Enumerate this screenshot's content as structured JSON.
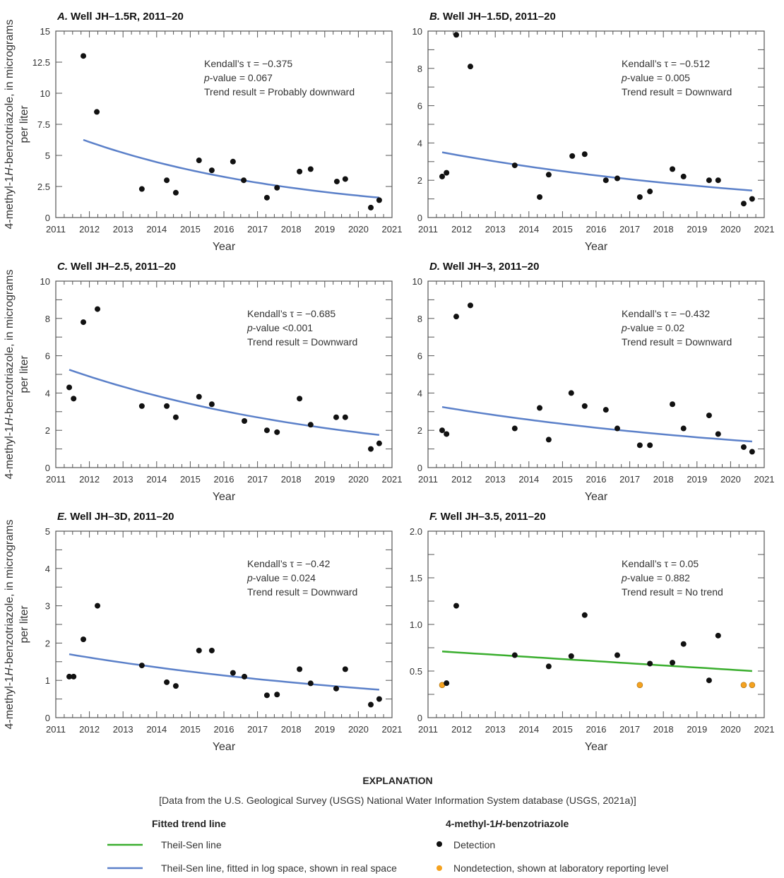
{
  "y_axis_label": {
    "line1_a": "4-methyl-1",
    "line1_italic": "H",
    "line1_b": "-benzotriazole, in micrograms",
    "line2": "per liter"
  },
  "x_axis_label": "Year",
  "stat_labels": {
    "kendall": "Kendall’s τ = ",
    "p_italic": "p",
    "p_rest": "-value ",
    "trend": "Trend result = "
  },
  "colors": {
    "detection": "#111111",
    "nondetection": "#f5a21f",
    "theil_sen": "#3aae2e",
    "theil_sen_log": "#5b80c9",
    "frame": "#555555"
  },
  "chart_data": [
    {
      "type": "scatter",
      "letter": "A.",
      "title": "Well JH–1.5R, 2011–20",
      "xlim": [
        2011,
        2021
      ],
      "ylim": [
        0,
        15
      ],
      "yticks": [
        "0",
        "2.5",
        "5",
        "7.5",
        "10",
        "12.5",
        "15"
      ],
      "yminor": 2.5,
      "stats": {
        "tau": "−0.375",
        "p": "= 0.067",
        "trend": "Probably downward"
      },
      "detections": [
        [
          2011.82,
          13
        ],
        [
          2012.22,
          8.5
        ],
        [
          2013.56,
          2.3
        ],
        [
          2014.3,
          3
        ],
        [
          2014.57,
          2
        ],
        [
          2015.26,
          4.6
        ],
        [
          2015.64,
          3.8
        ],
        [
          2016.27,
          4.5
        ],
        [
          2016.59,
          3
        ],
        [
          2017.28,
          1.6
        ],
        [
          2017.58,
          2.4
        ],
        [
          2018.25,
          3.7
        ],
        [
          2018.58,
          3.9
        ],
        [
          2019.36,
          2.9
        ],
        [
          2019.61,
          3.1
        ],
        [
          2020.37,
          0.8
        ],
        [
          2020.62,
          1.4
        ]
      ],
      "nondetections": [],
      "trend_line": {
        "method": "Theil-Sen line, fitted in log space, shown in real space",
        "start": [
          2011.82,
          6.25
        ],
        "end": [
          2020.62,
          1.6
        ]
      }
    },
    {
      "type": "scatter",
      "letter": "B.",
      "title": "Well JH–1.5D, 2011–20",
      "xlim": [
        2011,
        2021
      ],
      "ylim": [
        0,
        10
      ],
      "yticks": [
        "0",
        "2",
        "4",
        "6",
        "8",
        "10"
      ],
      "yminor": 1,
      "stats": {
        "tau": "−0.512",
        "p": "= 0.005",
        "trend": "Downward"
      },
      "detections": [
        [
          2011.42,
          2.2
        ],
        [
          2011.55,
          2.4
        ],
        [
          2011.84,
          9.8
        ],
        [
          2012.26,
          8.1
        ],
        [
          2013.58,
          2.8
        ],
        [
          2014.32,
          1.1
        ],
        [
          2014.59,
          2.3
        ],
        [
          2015.29,
          3.3
        ],
        [
          2015.66,
          3.4
        ],
        [
          2016.29,
          2.0
        ],
        [
          2016.63,
          2.1
        ],
        [
          2017.3,
          1.1
        ],
        [
          2017.6,
          1.4
        ],
        [
          2018.27,
          2.6
        ],
        [
          2018.6,
          2.2
        ],
        [
          2019.36,
          2.0
        ],
        [
          2019.63,
          2.0
        ],
        [
          2020.39,
          0.75
        ],
        [
          2020.64,
          1.0
        ]
      ],
      "nondetections": [],
      "trend_line": {
        "method": "Theil-Sen line, fitted in log space, shown in real space",
        "start": [
          2011.42,
          3.5
        ],
        "end": [
          2020.64,
          1.45
        ]
      }
    },
    {
      "type": "scatter",
      "letter": "C.",
      "title": "Well JH–2.5, 2011–20",
      "xlim": [
        2011,
        2021
      ],
      "ylim": [
        0,
        10
      ],
      "yticks": [
        "0",
        "2",
        "4",
        "6",
        "8",
        "10"
      ],
      "yminor": 1,
      "stats": {
        "tau": "−0.685",
        "p": "<0.001",
        "trend": "Downward"
      },
      "detections": [
        [
          2011.4,
          4.3
        ],
        [
          2011.53,
          3.7
        ],
        [
          2011.82,
          7.8
        ],
        [
          2012.24,
          8.5
        ],
        [
          2013.56,
          3.3
        ],
        [
          2014.3,
          3.3
        ],
        [
          2014.57,
          2.7
        ],
        [
          2015.26,
          3.8
        ],
        [
          2015.64,
          3.4
        ],
        [
          2016.61,
          2.5
        ],
        [
          2017.28,
          2.0
        ],
        [
          2017.58,
          1.9
        ],
        [
          2018.25,
          3.7
        ],
        [
          2018.58,
          2.3
        ],
        [
          2019.34,
          2.7
        ],
        [
          2019.61,
          2.7
        ],
        [
          2020.37,
          1.0
        ],
        [
          2020.62,
          1.3
        ]
      ],
      "nondetections": [],
      "trend_line": {
        "method": "Theil-Sen line, fitted in log space, shown in real space",
        "start": [
          2011.4,
          5.25
        ],
        "end": [
          2020.62,
          1.75
        ]
      }
    },
    {
      "type": "scatter",
      "letter": "D.",
      "title": "Well JH–3, 2011–20",
      "xlim": [
        2011,
        2021
      ],
      "ylim": [
        0,
        10
      ],
      "yticks": [
        "0",
        "2",
        "4",
        "6",
        "8",
        "10"
      ],
      "yminor": 1,
      "stats": {
        "tau": "−0.432",
        "p": "= 0.02",
        "trend": "Downward"
      },
      "detections": [
        [
          2011.42,
          2.0
        ],
        [
          2011.55,
          1.8
        ],
        [
          2011.84,
          8.1
        ],
        [
          2012.26,
          8.7
        ],
        [
          2013.58,
          2.1
        ],
        [
          2014.32,
          3.2
        ],
        [
          2014.59,
          1.5
        ],
        [
          2015.26,
          4.0
        ],
        [
          2015.66,
          3.3
        ],
        [
          2016.29,
          3.1
        ],
        [
          2016.63,
          2.1
        ],
        [
          2017.3,
          1.2
        ],
        [
          2017.6,
          1.2
        ],
        [
          2018.27,
          3.4
        ],
        [
          2018.6,
          2.1
        ],
        [
          2019.36,
          2.8
        ],
        [
          2019.63,
          1.8
        ],
        [
          2020.39,
          1.1
        ],
        [
          2020.64,
          0.85
        ]
      ],
      "nondetections": [],
      "trend_line": {
        "method": "Theil-Sen line, fitted in log space, shown in real space",
        "start": [
          2011.42,
          3.25
        ],
        "end": [
          2020.64,
          1.4
        ]
      }
    },
    {
      "type": "scatter",
      "letter": "E.",
      "title": "Well JH–3D, 2011–20",
      "xlim": [
        2011,
        2021
      ],
      "ylim": [
        0,
        5
      ],
      "yticks": [
        "0",
        "1",
        "2",
        "3",
        "4",
        "5"
      ],
      "yminor": 0.5,
      "stats": {
        "tau": "−0.42",
        "p": "= 0.024",
        "trend": "Downward"
      },
      "detections": [
        [
          2011.4,
          1.1
        ],
        [
          2011.53,
          1.1
        ],
        [
          2011.82,
          2.1
        ],
        [
          2012.24,
          3.0
        ],
        [
          2013.56,
          1.4
        ],
        [
          2014.3,
          0.95
        ],
        [
          2014.57,
          0.85
        ],
        [
          2015.26,
          1.8
        ],
        [
          2015.64,
          1.8
        ],
        [
          2016.27,
          1.2
        ],
        [
          2016.61,
          1.1
        ],
        [
          2017.28,
          0.6
        ],
        [
          2017.58,
          0.62
        ],
        [
          2018.25,
          1.3
        ],
        [
          2018.58,
          0.92
        ],
        [
          2019.34,
          0.78
        ],
        [
          2019.61,
          1.3
        ],
        [
          2020.37,
          0.35
        ],
        [
          2020.62,
          0.5
        ]
      ],
      "nondetections": [],
      "trend_line": {
        "method": "Theil-Sen line, fitted in log space, shown in real space",
        "start": [
          2011.4,
          1.7
        ],
        "end": [
          2020.62,
          0.75
        ]
      }
    },
    {
      "type": "scatter",
      "letter": "F.",
      "title": "Well JH–3.5, 2011–20",
      "xlim": [
        2011,
        2021
      ],
      "ylim": [
        0,
        2
      ],
      "yticks": [
        "0",
        "0.5",
        "1.0",
        "1.5",
        "2.0"
      ],
      "yminor": 0.25,
      "stats": {
        "tau": "0.05",
        "p": "= 0.882",
        "trend": "No trend"
      },
      "detections": [
        [
          2011.55,
          0.37
        ],
        [
          2011.84,
          1.2
        ],
        [
          2013.58,
          0.67
        ],
        [
          2014.59,
          0.55
        ],
        [
          2015.26,
          0.66
        ],
        [
          2015.66,
          1.1
        ],
        [
          2016.63,
          0.67
        ],
        [
          2017.6,
          0.58
        ],
        [
          2018.27,
          0.59
        ],
        [
          2018.6,
          0.79
        ],
        [
          2019.36,
          0.4
        ],
        [
          2019.63,
          0.88
        ]
      ],
      "nondetections": [
        [
          2011.42,
          0.35
        ],
        [
          2017.3,
          0.35
        ],
        [
          2020.39,
          0.35
        ],
        [
          2020.64,
          0.35
        ]
      ],
      "trend_line": {
        "method": "Theil-Sen line",
        "start": [
          2011.42,
          0.71
        ],
        "end": [
          2020.64,
          0.5
        ]
      }
    }
  ],
  "legend": {
    "heading": "EXPLANATION",
    "source": "[Data from the U.S. Geological Survey (USGS) National Water Information System database (USGS, 2021a)]",
    "trend_heading": "Fitted trend line",
    "trend_items": [
      "Theil-Sen line",
      "Theil-Sen line, fitted in log space, shown in real space"
    ],
    "compound_heading_a": "4-methyl-1",
    "compound_heading_italic": "H",
    "compound_heading_b": "-benzotriazole",
    "point_items": [
      "Detection",
      "Nondetection, shown at laboratory reporting level"
    ]
  }
}
